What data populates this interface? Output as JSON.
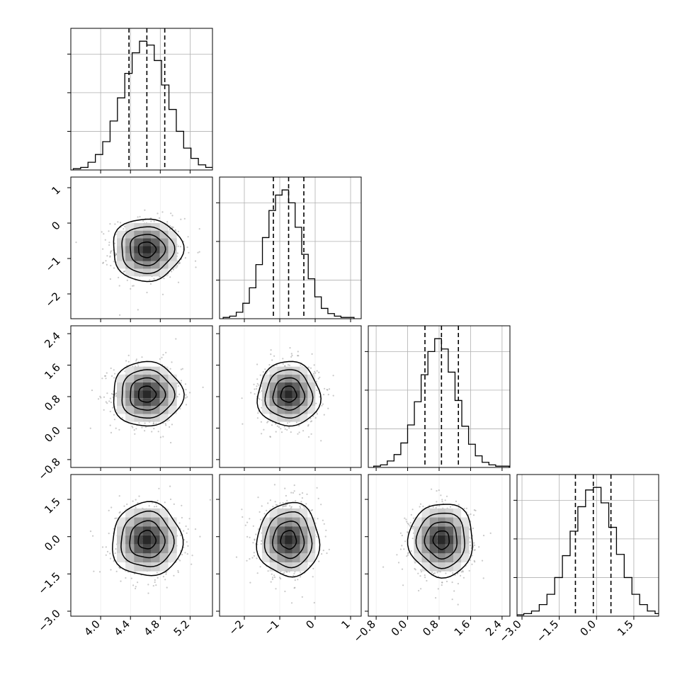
{
  "chart_data": {
    "type": "corner",
    "n_params": 4,
    "colors": {
      "line": "#000000",
      "grid": "#b0b0b0",
      "scatter": "#888888",
      "density_max": "#111111"
    },
    "grid": true,
    "params": [
      {
        "range": [
          3.6,
          5.5
        ],
        "ticks": [
          4.0,
          4.4,
          4.8,
          5.2
        ],
        "tick_labels": [
          "4.0",
          "4.4",
          "4.8",
          "5.2"
        ],
        "mean": 4.62,
        "sd": 0.235,
        "quantiles": [
          4.38,
          4.62,
          4.86
        ],
        "hist_counts": [
          1,
          2,
          6,
          12,
          22,
          38,
          56,
          75,
          91,
          100,
          97,
          85,
          66,
          47,
          30,
          17,
          9,
          4,
          2,
          1
        ]
      },
      {
        "range": [
          -2.7,
          1.3
        ],
        "ticks": [
          -2,
          -1,
          0,
          1
        ],
        "tick_labels": [
          "−2",
          "−1",
          "0",
          "1"
        ],
        "mean": -0.75,
        "sd": 0.44,
        "quantiles": [
          -1.18,
          -0.75,
          -0.32
        ],
        "hist_counts": [
          1,
          2,
          5,
          12,
          24,
          42,
          63,
          84,
          96,
          100,
          90,
          71,
          50,
          31,
          17,
          8,
          4,
          2,
          1,
          1
        ]
      },
      {
        "range": [
          -1.0,
          2.6
        ],
        "ticks": [
          -0.8,
          0.0,
          0.8,
          1.6,
          2.4
        ],
        "tick_labels": [
          "−0.8",
          "0.0",
          "0.8",
          "1.6",
          "2.4"
        ],
        "mean": 0.86,
        "sd": 0.41,
        "quantiles": [
          0.44,
          0.86,
          1.29
        ],
        "hist_counts": [
          1,
          2,
          5,
          10,
          19,
          33,
          51,
          72,
          90,
          100,
          92,
          74,
          52,
          32,
          18,
          9,
          4,
          2,
          1,
          1
        ]
      },
      {
        "range": [
          -3.2,
          2.5
        ],
        "ticks": [
          -3.0,
          -1.5,
          0.0,
          1.5
        ],
        "tick_labels": [
          "−3.0",
          "−1.5",
          "0.0",
          "1.5"
        ],
        "mean": -0.13,
        "sd": 0.74,
        "quantiles": [
          -0.85,
          -0.13,
          0.58
        ],
        "hist_counts": [
          1,
          2,
          4,
          9,
          17,
          30,
          47,
          66,
          85,
          98,
          100,
          88,
          69,
          48,
          30,
          17,
          9,
          4,
          2,
          1
        ]
      }
    ],
    "contour_levels_sigma": [
      0.5,
      1.0,
      1.5,
      2.0
    ],
    "density_grid_bins": 20,
    "scatter_points_per_panel": 650
  }
}
